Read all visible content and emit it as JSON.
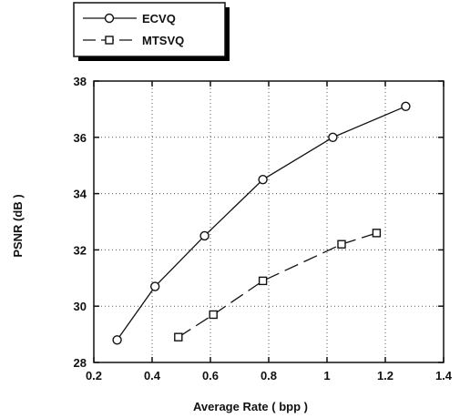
{
  "chart_data": {
    "type": "line",
    "title": "",
    "xlabel": "Average Rate ( bpp )",
    "ylabel": "PSNR (dB )",
    "xlim": [
      0.2,
      1.4
    ],
    "ylim": [
      28,
      38
    ],
    "xticks": [
      "0.2",
      "0.4",
      "0.6",
      "0.8",
      "1",
      "1.2",
      "1.4"
    ],
    "yticks": [
      "28",
      "30",
      "32",
      "34",
      "36",
      "38"
    ],
    "grid": true,
    "legend": "top-left, outside plot",
    "series": [
      {
        "name": "ECVQ",
        "marker": "circle",
        "linestyle": "solid",
        "x": [
          0.28,
          0.41,
          0.58,
          0.78,
          1.02,
          1.27
        ],
        "y": [
          28.8,
          30.7,
          32.5,
          34.5,
          36.0,
          37.1
        ]
      },
      {
        "name": "MTSVQ",
        "marker": "square",
        "linestyle": "dashed",
        "x": [
          0.49,
          0.61,
          0.78,
          1.05,
          1.17
        ],
        "y": [
          28.9,
          29.7,
          30.9,
          32.2,
          32.6
        ]
      }
    ]
  }
}
